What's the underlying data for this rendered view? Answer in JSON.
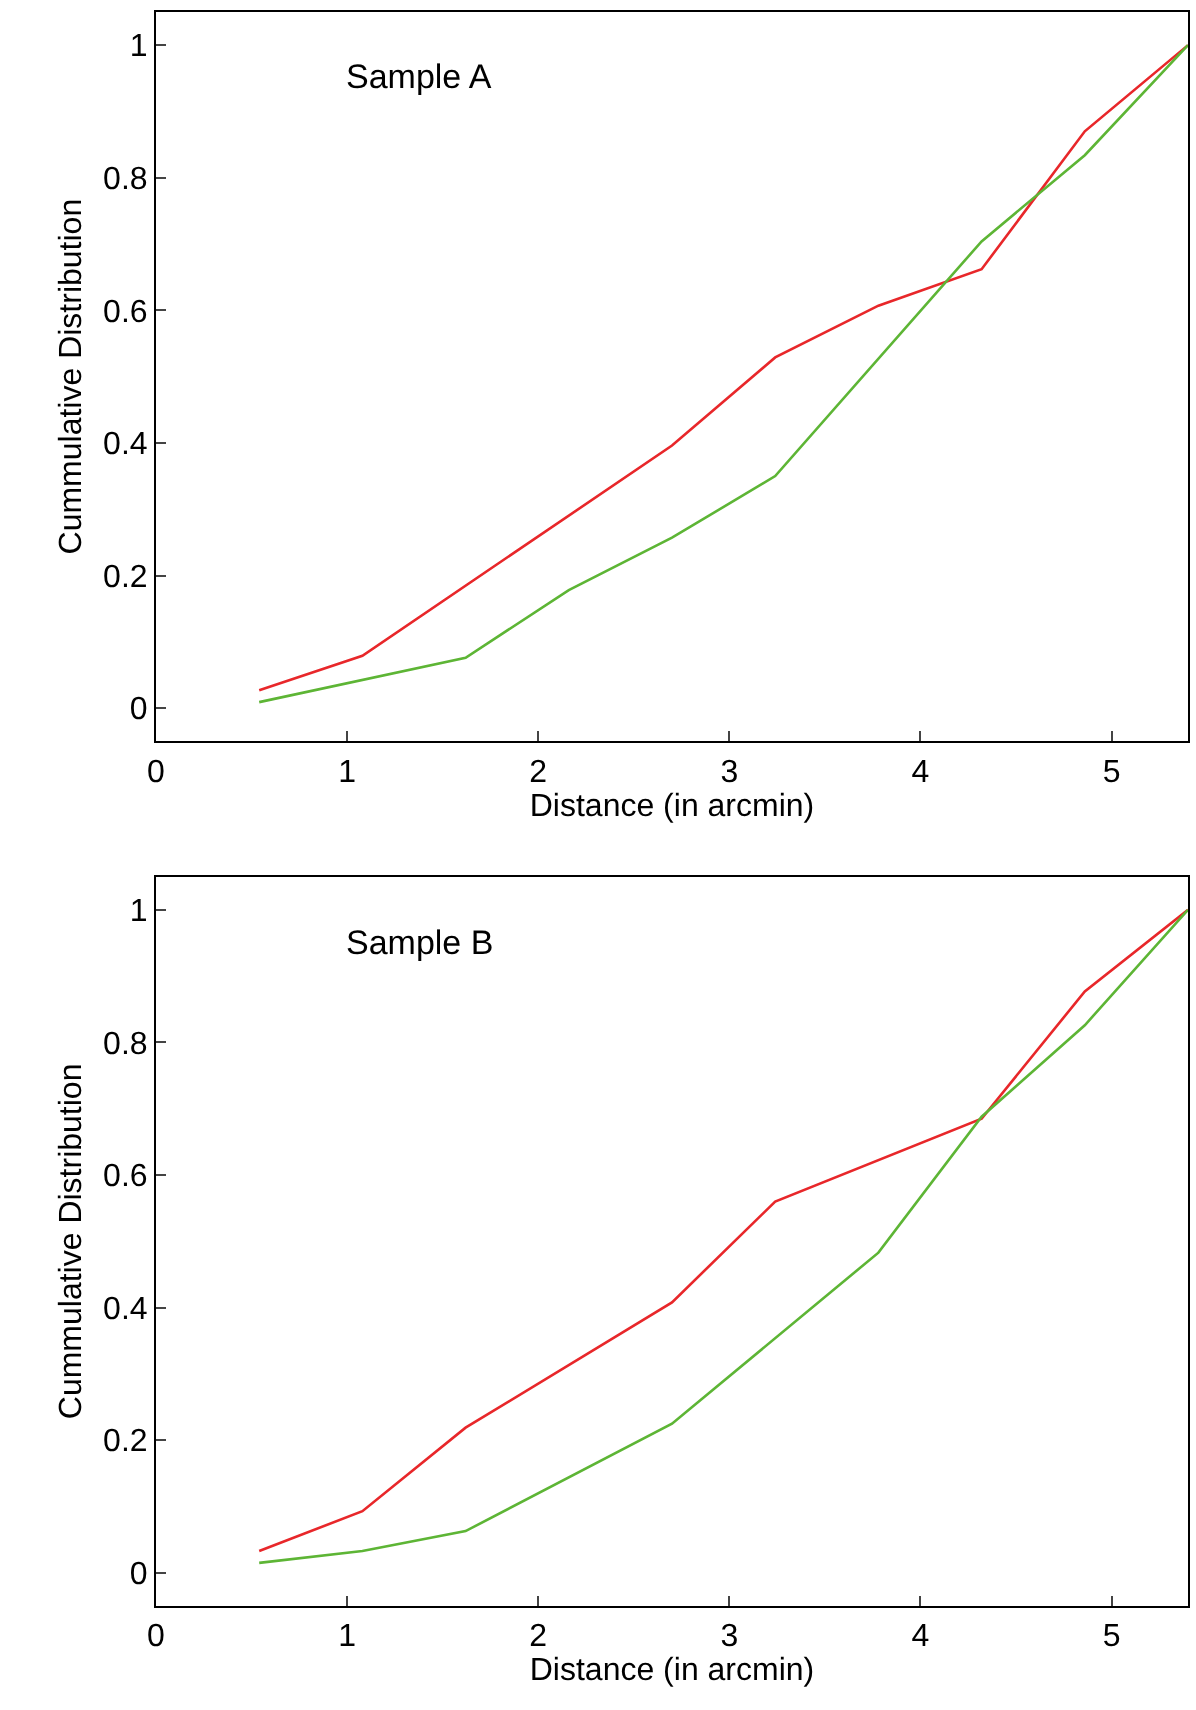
{
  "chart_data": [
    {
      "type": "line",
      "xlabel": "Distance (in arcmin)",
      "ylabel": "Cummulative Distribution",
      "annotations": [
        "Sample A"
      ],
      "xlim": [
        0,
        5.4
      ],
      "ylim": [
        -0.05,
        1.05
      ],
      "xticks": [
        0,
        1,
        2,
        3,
        4,
        5
      ],
      "yticks": [
        0,
        0.2,
        0.4,
        0.6,
        0.8,
        1
      ],
      "marker": "none",
      "line_style": "solid",
      "series": [
        {
          "color": "#e8272a",
          "x": [
            0.54,
            1.08,
            2.7,
            3.24,
            3.78,
            4.32,
            4.86,
            5.4
          ],
          "values": [
            0.027,
            0.079,
            0.396,
            0.529,
            0.607,
            0.662,
            0.87,
            1.0
          ]
        },
        {
          "color": "#5db535",
          "x": [
            0.54,
            1.62,
            2.16,
            2.7,
            3.24,
            4.32,
            4.86,
            5.4
          ],
          "values": [
            0.009,
            0.076,
            0.178,
            0.257,
            0.35,
            0.704,
            0.834,
            1.0
          ]
        }
      ]
    },
    {
      "type": "line",
      "xlabel": "Distance (in arcmin)",
      "ylabel": "Cummulative Distribution",
      "annotations": [
        "Sample B"
      ],
      "xlim": [
        0,
        5.4
      ],
      "ylim": [
        -0.05,
        1.05
      ],
      "xticks": [
        0,
        1,
        2,
        3,
        4,
        5
      ],
      "yticks": [
        0,
        0.2,
        0.4,
        0.6,
        0.8,
        1
      ],
      "marker": "none",
      "line_style": "solid",
      "series": [
        {
          "color": "#e8272a",
          "x": [
            0.54,
            1.08,
            1.62,
            2.7,
            3.24,
            4.32,
            4.86,
            5.4
          ],
          "values": [
            0.033,
            0.093,
            0.219,
            0.408,
            0.56,
            0.685,
            0.877,
            1.0
          ]
        },
        {
          "color": "#5db535",
          "x": [
            0.54,
            1.08,
            1.62,
            2.7,
            3.78,
            4.32,
            4.86,
            5.4
          ],
          "values": [
            0.015,
            0.033,
            0.063,
            0.225,
            0.483,
            0.688,
            0.826,
            1.0
          ]
        }
      ]
    }
  ]
}
